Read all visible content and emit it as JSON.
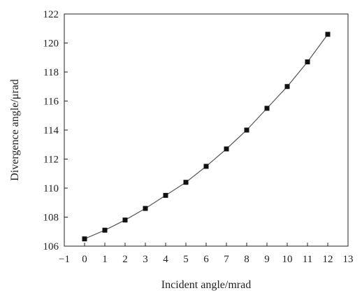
{
  "chart_data": {
    "type": "line",
    "xlabel": "Incident angle/mrad",
    "ylabel": "Divergence angle/μrad",
    "xlim": [
      -1,
      13
    ],
    "ylim": [
      106,
      122
    ],
    "x_ticks": [
      "−1",
      "0",
      "1",
      "2",
      "3",
      "4",
      "5",
      "6",
      "7",
      "8",
      "9",
      "10",
      "11",
      "12",
      "13"
    ],
    "y_ticks": [
      "106",
      "108",
      "110",
      "112",
      "114",
      "116",
      "118",
      "120",
      "122"
    ],
    "grid": false,
    "legend": "none",
    "marker": "square",
    "line_color": "#555555",
    "marker_color": "#111111",
    "series": [
      {
        "x": [
          0,
          1,
          2,
          3,
          4,
          5,
          6,
          7,
          8,
          9,
          10,
          11,
          12
        ],
        "values": [
          106.5,
          107.1,
          107.8,
          108.6,
          109.5,
          110.4,
          111.5,
          112.7,
          114.0,
          115.5,
          117.0,
          118.7,
          120.6
        ]
      }
    ]
  }
}
